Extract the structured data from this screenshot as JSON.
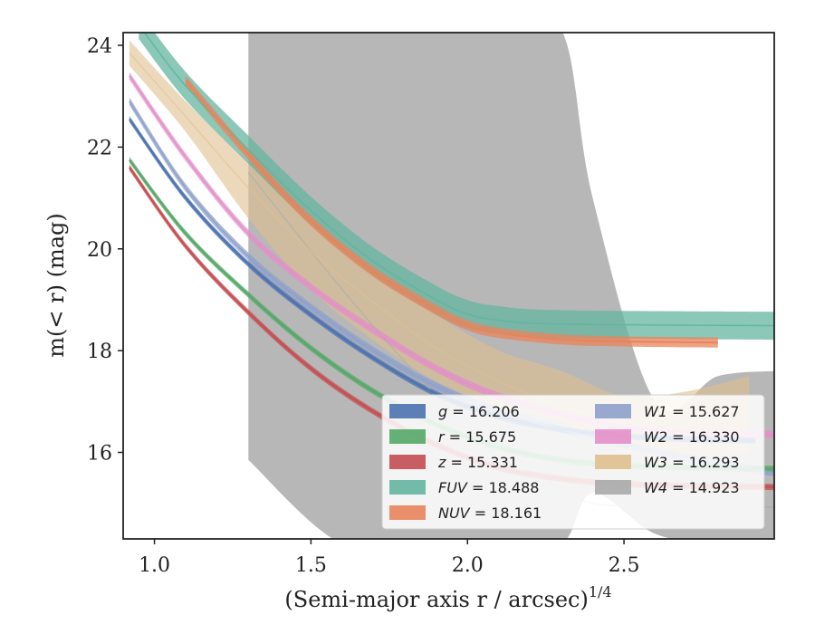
{
  "chart_data": {
    "type": "line",
    "xlabel": "(Semi-major axis r / arcsec)",
    "xlabel_exponent": "1/4",
    "ylabel": "m(< r) (mag)",
    "xlim": [
      0.9,
      2.98
    ],
    "ylim": [
      24.25,
      14.3
    ],
    "xticks": [
      1.0,
      1.5,
      2.0,
      2.5
    ],
    "xtick_labels": [
      "1.0",
      "1.5",
      "2.0",
      "2.5"
    ],
    "yticks": [
      16,
      18,
      20,
      22,
      24
    ],
    "ytick_labels": [
      "16",
      "18",
      "20",
      "22",
      "24"
    ],
    "grid": false,
    "legend_position": "lower-right",
    "legend_columns": 2,
    "series": [
      {
        "name": "g = 16.206",
        "band": "g",
        "value": "16.206",
        "color": "#4c72b0",
        "x": [
          0.92,
          1.1,
          1.3,
          1.5,
          1.7,
          1.9,
          2.1,
          2.3,
          2.5,
          2.7,
          2.92
        ],
        "y": [
          22.55,
          21.0,
          19.7,
          18.7,
          17.85,
          17.15,
          16.7,
          16.45,
          16.32,
          16.26,
          16.23
        ],
        "band_width": 0.12
      },
      {
        "name": "r = 15.675",
        "band": "r",
        "value": "15.675",
        "color": "#55a868",
        "x": [
          0.92,
          1.1,
          1.3,
          1.5,
          1.7,
          1.9,
          2.1,
          2.3,
          2.5,
          2.7,
          2.98
        ],
        "y": [
          21.75,
          20.3,
          19.1,
          18.05,
          17.2,
          16.55,
          16.1,
          15.85,
          15.74,
          15.7,
          15.68
        ],
        "band_width": 0.12
      },
      {
        "name": "z = 15.331",
        "band": "z",
        "value": "15.331",
        "color": "#c44e52",
        "x": [
          0.92,
          1.1,
          1.3,
          1.5,
          1.7,
          1.9,
          2.1,
          2.3,
          2.5,
          2.7,
          2.98
        ],
        "y": [
          21.6,
          20.05,
          18.75,
          17.65,
          16.8,
          16.15,
          15.7,
          15.48,
          15.38,
          15.34,
          15.32
        ],
        "band_width": 0.12
      },
      {
        "name": "FUV = 18.488",
        "band": "FUV",
        "value": "18.488",
        "color": "#64b5a0",
        "x": [
          0.95,
          1.1,
          1.3,
          1.5,
          1.7,
          1.9,
          2.0,
          2.1,
          2.3,
          2.98
        ],
        "y": [
          24.4,
          23.2,
          21.95,
          20.75,
          19.75,
          19.0,
          18.72,
          18.6,
          18.52,
          18.49
        ],
        "band_width": 0.55
      },
      {
        "name": "NUV = 18.161",
        "band": "NUV",
        "value": "18.161",
        "color": "#e8845c",
        "x": [
          1.1,
          1.3,
          1.5,
          1.7,
          1.9,
          2.0,
          2.1,
          2.3,
          2.5,
          2.8
        ],
        "y": [
          23.3,
          21.85,
          20.55,
          19.55,
          18.8,
          18.5,
          18.35,
          18.22,
          18.18,
          18.16
        ],
        "band_width": 0.2
      },
      {
        "name": "W1 = 15.627",
        "band": "W1",
        "value": "15.627",
        "color": "#8da0cb",
        "x": [
          0.92,
          1.1,
          1.3,
          1.5,
          1.7,
          1.9,
          2.1,
          2.3,
          2.5,
          2.7,
          2.98
        ],
        "y": [
          22.9,
          21.2,
          19.85,
          18.85,
          18.0,
          17.3,
          16.8,
          16.45,
          16.15,
          15.9,
          15.6
        ],
        "band_width": 0.15
      },
      {
        "name": "W2 = 16.330",
        "band": "W2",
        "value": "16.330",
        "color": "#e38fc8",
        "x": [
          0.92,
          1.1,
          1.3,
          1.5,
          1.7,
          1.9,
          2.1,
          2.3,
          2.5,
          2.7,
          2.98
        ],
        "y": [
          23.4,
          21.8,
          20.3,
          19.25,
          18.4,
          17.65,
          17.1,
          16.75,
          16.5,
          16.4,
          16.35
        ],
        "band_width": 0.15
      },
      {
        "name": "W3 = 16.293",
        "band": "W3",
        "value": "16.293",
        "color": "#dfc08f",
        "x": [
          0.92,
          1.1,
          1.3,
          1.5,
          1.7,
          1.9,
          2.1,
          2.3,
          2.5,
          2.7,
          2.9
        ],
        "y": [
          23.85,
          22.6,
          21.2,
          19.95,
          18.95,
          18.05,
          17.4,
          16.9,
          16.55,
          16.45,
          16.35
        ],
        "band_lower": [
          23.6,
          22.3,
          20.6,
          19.2,
          18.2,
          17.4,
          16.9,
          16.6,
          16.0,
          15.9,
          16.0
        ],
        "band_upper": [
          24.1,
          22.9,
          21.7,
          20.6,
          19.6,
          18.7,
          18.0,
          17.6,
          17.1,
          17.2,
          17.5
        ]
      },
      {
        "name": "W4 = 14.923",
        "band": "W4",
        "value": "14.923",
        "color": "#aaaaaa",
        "x": [
          1.3,
          1.6,
          1.9,
          2.1,
          2.3,
          2.4,
          2.6,
          2.8,
          2.98
        ],
        "y": [
          21.5,
          19.2,
          17.1,
          15.9,
          15.3,
          15.0,
          14.93,
          14.92,
          14.92
        ],
        "band_lower": [
          15.85,
          14.2,
          14.2,
          14.2,
          14.2,
          15.2,
          14.4,
          14.2,
          14.2
        ],
        "band_upper": [
          24.3,
          24.3,
          24.3,
          24.3,
          24.3,
          21.0,
          17.0,
          17.5,
          17.6
        ]
      }
    ]
  }
}
